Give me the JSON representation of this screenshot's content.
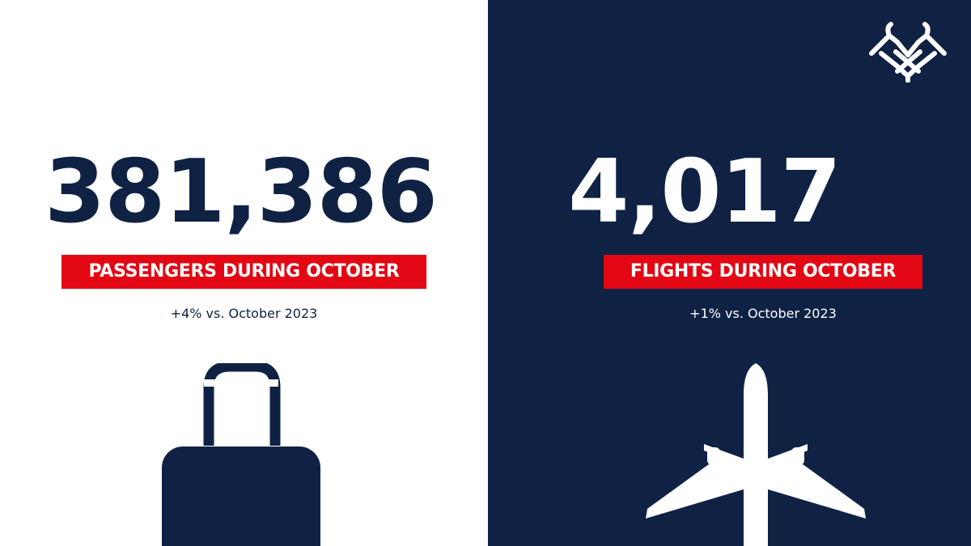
{
  "passengers": {
    "value": "381,386",
    "label": "PASSENGERS DURING OCTOBER",
    "comparison": "+4% vs. October 2023",
    "icon": "suitcase-icon"
  },
  "flights": {
    "value": "4,017",
    "label": "FLIGHTS DURING OCTOBER",
    "comparison": "+1% vs. October 2023",
    "icon": "airplane-icon"
  },
  "logo": {
    "icon": "double-eagle-logo-icon"
  },
  "colors": {
    "navy": "#0f2244",
    "red": "#e30613",
    "white": "#ffffff"
  }
}
